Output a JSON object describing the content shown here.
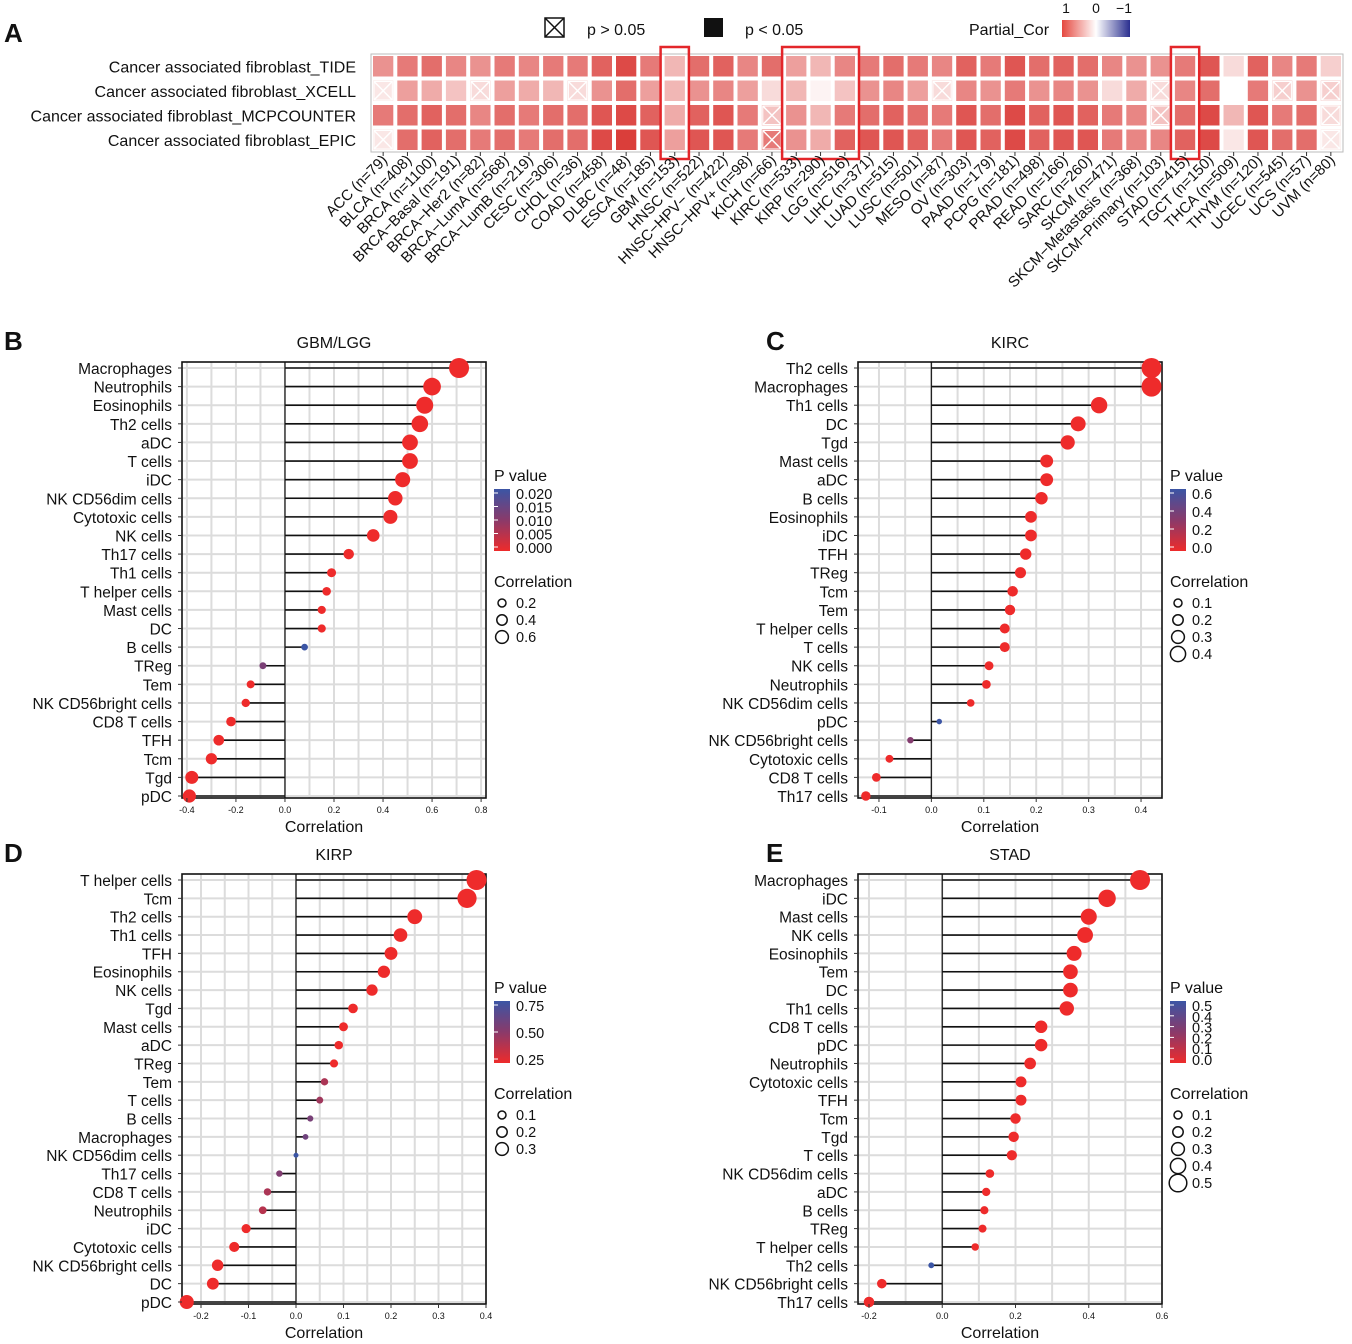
{
  "figure": {
    "panel_letters": [
      "A",
      "B",
      "C",
      "D",
      "E"
    ]
  },
  "heatmap": {
    "legend": {
      "ns_label": "p > 0.05",
      "sig_label": "p < 0.05",
      "scale_title": "Partial_Cor",
      "scale_ticks": [
        "1",
        "0",
        "−1"
      ]
    },
    "rows": [
      "Cancer associated fibroblast_TIDE",
      "Cancer associated fibroblast_XCELL",
      "Cancer associated fibroblast_MCPCOUNTER",
      "Cancer associated fibroblast_EPIC"
    ],
    "columns": [
      "ACC (n=79)",
      "BLCA (n=408)",
      "BRCA (n=1100)",
      "BRCA−Basal (n=191)",
      "BRCA−Her2 (n=82)",
      "BRCA−LumA (n=568)",
      "BRCA−LumB (n=219)",
      "CESC (n=306)",
      "CHOL (n=36)",
      "COAD (n=458)",
      "DLBC (n=48)",
      "ESCA (n=185)",
      "GBM (n=153)",
      "HNSC (n=522)",
      "HNSC−HPV− (n=422)",
      "HNSC−HPV+ (n=98)",
      "KICH (n=66)",
      "KIRC (n=533)",
      "KIRP (n=290)",
      "LGG (n=516)",
      "LIHC (n=371)",
      "LUAD (n=515)",
      "LUSC (n=501)",
      "MESO (n=87)",
      "OV (n=303)",
      "PAAD (n=179)",
      "PCPG (n=181)",
      "PRAD (n=498)",
      "READ (n=166)",
      "SARC (n=260)",
      "SKCM (n=471)",
      "SKCM−Metastasis (n=368)",
      "SKCM−Primary (n=103)",
      "STAD (n=415)",
      "TGCT (n=150)",
      "THCA (n=509)",
      "THYM (n=120)",
      "UCEC (n=545)",
      "UCS (n=57)",
      "UVM (n=80)"
    ],
    "values": [
      [
        0.45,
        0.55,
        0.6,
        0.5,
        0.45,
        0.55,
        0.5,
        0.55,
        0.55,
        0.65,
        0.75,
        0.55,
        0.3,
        0.6,
        0.65,
        0.5,
        0.6,
        0.4,
        0.3,
        0.5,
        0.55,
        0.6,
        0.55,
        0.5,
        0.65,
        0.55,
        0.7,
        0.6,
        0.65,
        0.6,
        0.5,
        0.45,
        0.45,
        0.55,
        0.7,
        0.15,
        0.65,
        0.5,
        0.55,
        0.2
      ],
      [
        0.1,
        0.4,
        0.35,
        0.25,
        0.15,
        0.4,
        0.35,
        0.3,
        0.15,
        0.45,
        0.6,
        0.4,
        0.3,
        0.45,
        0.5,
        0.4,
        0.15,
        0.3,
        0.05,
        0.25,
        0.45,
        0.5,
        0.4,
        0.15,
        0.5,
        0.45,
        0.55,
        0.45,
        0.5,
        0.45,
        0.15,
        0.35,
        0.15,
        0.5,
        0.6,
        0.0,
        0.55,
        0.2,
        0.45,
        0.2
      ],
      [
        0.55,
        0.6,
        0.65,
        0.6,
        0.5,
        0.6,
        0.55,
        0.6,
        0.6,
        0.7,
        0.75,
        0.65,
        0.35,
        0.65,
        0.7,
        0.55,
        0.25,
        0.45,
        0.3,
        0.55,
        0.6,
        0.65,
        0.6,
        0.55,
        0.7,
        0.6,
        0.75,
        0.65,
        0.7,
        0.65,
        0.55,
        0.5,
        0.25,
        0.6,
        0.75,
        0.3,
        0.7,
        0.55,
        0.6,
        0.15
      ],
      [
        0.1,
        0.6,
        0.65,
        0.6,
        0.55,
        0.6,
        0.55,
        0.6,
        0.6,
        0.75,
        0.8,
        0.7,
        0.4,
        0.7,
        0.7,
        0.55,
        0.55,
        0.45,
        0.35,
        0.65,
        0.7,
        0.7,
        0.65,
        0.55,
        0.7,
        0.65,
        0.75,
        0.65,
        0.7,
        0.7,
        0.55,
        0.5,
        0.5,
        0.65,
        0.75,
        0.1,
        0.7,
        0.6,
        0.6,
        0.1
      ]
    ],
    "ns_cells": [
      [
        3,
        39
      ],
      [
        1,
        0
      ],
      [
        1,
        4
      ],
      [
        1,
        8
      ],
      [
        1,
        23
      ],
      [
        1,
        32
      ],
      [
        1,
        37
      ],
      [
        1,
        39
      ],
      [
        2,
        16
      ],
      [
        2,
        32
      ],
      [
        2,
        39
      ],
      [
        3,
        0
      ],
      [
        3,
        16
      ]
    ],
    "highlight_groups": [
      [
        "GBM (n=153)"
      ],
      [
        "KIRC (n=533)",
        "KIRP (n=290)",
        "LGG (n=516)"
      ],
      [
        "STAD (n=415)"
      ]
    ]
  },
  "chart_data": [
    {
      "type": "lollipop",
      "panel": "B",
      "title": "GBM/LGG",
      "xlabel": "Correlation",
      "xlim": [
        -0.42,
        0.82
      ],
      "xticks": [
        "-0.4",
        "-0.2",
        "0.0",
        "0.2",
        "0.4",
        "0.6",
        "0.8"
      ],
      "xtick_values": [
        -0.4,
        -0.2,
        0.0,
        0.2,
        0.4,
        0.6,
        0.8
      ],
      "pvalue_legend": {
        "title": "P value",
        "ticks": [
          "0.020",
          "0.015",
          "0.010",
          "0.005",
          "0.000"
        ]
      },
      "size_legend": {
        "title": "Correlation",
        "ticks": [
          "0.2",
          "0.4",
          "0.6"
        ]
      },
      "categories": [
        "Macrophages",
        "Neutrophils",
        "Eosinophils",
        "Th2 cells",
        "aDC",
        "T cells",
        "iDC",
        "NK CD56dim cells",
        "Cytotoxic cells",
        "NK cells",
        "Th17 cells",
        "Th1 cells",
        "T helper cells",
        "Mast cells",
        "DC",
        "B cells",
        "TReg",
        "Tem",
        "NK CD56bright cells",
        "CD8 T cells",
        "TFH",
        "Tcm",
        "Tgd",
        "pDC"
      ],
      "values": [
        0.71,
        0.6,
        0.57,
        0.55,
        0.51,
        0.51,
        0.48,
        0.45,
        0.43,
        0.36,
        0.26,
        0.19,
        0.17,
        0.15,
        0.15,
        0.08,
        -0.09,
        -0.14,
        -0.16,
        -0.22,
        -0.27,
        -0.3,
        -0.38,
        -0.39
      ],
      "pvalues": [
        0,
        0,
        0,
        0,
        0,
        0,
        0,
        0,
        0,
        0,
        0,
        0,
        0,
        0,
        0,
        0.02,
        0.012,
        0,
        0,
        0,
        0,
        0,
        0,
        0
      ]
    },
    {
      "type": "lollipop",
      "panel": "C",
      "title": "KIRC",
      "xlabel": "Correlation",
      "xlim": [
        -0.14,
        0.44
      ],
      "xticks": [
        "-0.1",
        "0.0",
        "0.1",
        "0.2",
        "0.3",
        "0.4"
      ],
      "xtick_values": [
        -0.1,
        0.0,
        0.1,
        0.2,
        0.3,
        0.4
      ],
      "pvalue_legend": {
        "title": "P value",
        "ticks": [
          "0.6",
          "0.4",
          "0.2",
          "0.0"
        ]
      },
      "size_legend": {
        "title": "Correlation",
        "ticks": [
          "0.1",
          "0.2",
          "0.3",
          "0.4"
        ]
      },
      "categories": [
        "Th2 cells",
        "Macrophages",
        "Th1 cells",
        "DC",
        "Tgd",
        "Mast cells",
        "aDC",
        "B cells",
        "Eosinophils",
        "iDC",
        "TFH",
        "TReg",
        "Tcm",
        "Tem",
        "T helper cells",
        "T cells",
        "NK cells",
        "Neutrophils",
        "NK CD56dim cells",
        "pDC",
        "NK CD56bright cells",
        "Cytotoxic cells",
        "CD8 T cells",
        "Th17 cells"
      ],
      "values": [
        0.42,
        0.42,
        0.32,
        0.28,
        0.26,
        0.22,
        0.22,
        0.21,
        0.19,
        0.19,
        0.18,
        0.17,
        0.155,
        0.15,
        0.14,
        0.14,
        0.11,
        0.105,
        0.075,
        0.015,
        -0.04,
        -0.08,
        -0.105,
        -0.125
      ],
      "pvalues": [
        0,
        0,
        0,
        0,
        0,
        0,
        0,
        0,
        0,
        0,
        0,
        0,
        0,
        0,
        0,
        0,
        0,
        0,
        0,
        0.65,
        0.35,
        0,
        0,
        0
      ]
    },
    {
      "type": "lollipop",
      "panel": "D",
      "title": "KIRP",
      "xlabel": "Correlation",
      "xlim": [
        -0.24,
        0.4
      ],
      "xticks": [
        "-0.2",
        "-0.1",
        "0.0",
        "0.1",
        "0.2",
        "0.3",
        "0.4"
      ],
      "xtick_values": [
        -0.2,
        -0.1,
        0.0,
        0.1,
        0.2,
        0.3,
        0.4
      ],
      "pvalue_legend": {
        "title": "P value",
        "ticks": [
          "0.75",
          "0.50",
          "0.25"
        ]
      },
      "size_legend": {
        "title": "Correlation",
        "ticks": [
          "0.1",
          "0.2",
          "0.3"
        ]
      },
      "categories": [
        "T helper cells",
        "Tcm",
        "Th2 cells",
        "Th1 cells",
        "TFH",
        "Eosinophils",
        "NK cells",
        "Tgd",
        "Mast cells",
        "aDC",
        "TReg",
        "Tem",
        "T cells",
        "B cells",
        "Macrophages",
        "NK CD56dim cells",
        "Th17 cells",
        "CD8 T cells",
        "Neutrophils",
        "iDC",
        "Cytotoxic cells",
        "NK CD56bright cells",
        "DC",
        "pDC"
      ],
      "values": [
        0.38,
        0.36,
        0.25,
        0.22,
        0.2,
        0.185,
        0.16,
        0.12,
        0.1,
        0.09,
        0.08,
        0.06,
        0.05,
        0.03,
        0.02,
        0.0,
        -0.035,
        -0.06,
        -0.07,
        -0.105,
        -0.13,
        -0.165,
        -0.175,
        -0.23
      ],
      "pvalues": [
        0,
        0,
        0,
        0,
        0,
        0,
        0,
        0,
        0,
        0,
        0,
        0.3,
        0.35,
        0.55,
        0.6,
        0.9,
        0.5,
        0.3,
        0.25,
        0,
        0,
        0,
        0,
        0
      ]
    },
    {
      "type": "lollipop",
      "panel": "E",
      "title": "STAD",
      "xlabel": "Correlation",
      "xlim": [
        -0.23,
        0.6
      ],
      "xticks": [
        "-0.2",
        "0.0",
        "0.2",
        "0.4",
        "0.6"
      ],
      "xtick_values": [
        -0.2,
        0.0,
        0.2,
        0.4,
        0.6
      ],
      "pvalue_legend": {
        "title": "P value",
        "ticks": [
          "0.5",
          "0.4",
          "0.3",
          "0.2",
          "0.1",
          "0.0"
        ]
      },
      "size_legend": {
        "title": "Correlation",
        "ticks": [
          "0.1",
          "0.2",
          "0.3",
          "0.4",
          "0.5"
        ]
      },
      "categories": [
        "Macrophages",
        "iDC",
        "Mast cells",
        "NK cells",
        "Eosinophils",
        "Tem",
        "DC",
        "Th1 cells",
        "CD8 T cells",
        "pDC",
        "Neutrophils",
        "Cytotoxic cells",
        "TFH",
        "Tcm",
        "Tgd",
        "T cells",
        "NK CD56dim cells",
        "aDC",
        "B cells",
        "TReg",
        "T helper cells",
        "Th2 cells",
        "NK CD56bright cells",
        "Th17 cells"
      ],
      "values": [
        0.54,
        0.45,
        0.4,
        0.39,
        0.36,
        0.35,
        0.35,
        0.34,
        0.27,
        0.27,
        0.24,
        0.215,
        0.215,
        0.2,
        0.195,
        0.19,
        0.13,
        0.12,
        0.115,
        0.11,
        0.09,
        -0.03,
        -0.165,
        -0.2
      ],
      "pvalues": [
        0,
        0,
        0,
        0,
        0,
        0,
        0,
        0,
        0,
        0,
        0,
        0,
        0,
        0,
        0,
        0,
        0,
        0,
        0,
        0,
        0,
        0.55,
        0,
        0
      ]
    }
  ]
}
